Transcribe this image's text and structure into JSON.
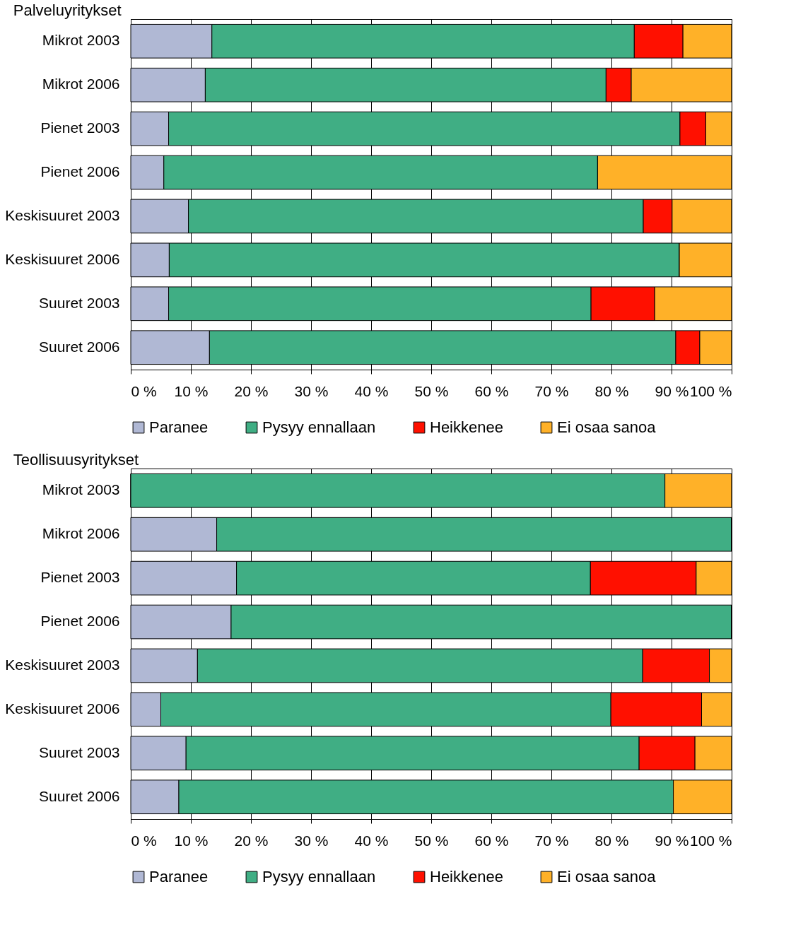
{
  "chart_data": [
    {
      "type": "bar",
      "orientation": "horizontal",
      "stacked": true,
      "title": "Palveluyritykset",
      "categories": [
        "Mikrot 2003",
        "Mikrot 2006",
        "Pienet 2003",
        "Pienet 2006",
        "Keskisuuret 2003",
        "Keskisuuret 2006",
        "Suuret 2003",
        "Suuret 2006"
      ],
      "series": [
        {
          "name": "Paranee",
          "color": "#b0b8d4",
          "values": [
            13.5,
            12.4,
            6.3,
            5.5,
            9.6,
            6.4,
            6.3,
            13.1
          ]
        },
        {
          "name": "Pysyy ennallaan",
          "color": "#40ae84",
          "values": [
            70.3,
            66.7,
            85.1,
            72.2,
            75.7,
            84.9,
            70.3,
            77.6
          ]
        },
        {
          "name": "Heikkenee",
          "color": "#ff1000",
          "values": [
            8.1,
            4.2,
            4.3,
            0,
            4.8,
            0,
            10.6,
            4.0
          ]
        },
        {
          "name": "Ei osaa sanoa",
          "color": "#ffb128",
          "values": [
            8.1,
            16.7,
            4.3,
            22.3,
            9.9,
            8.7,
            12.8,
            5.3
          ]
        }
      ],
      "xlim": [
        0,
        100
      ],
      "xticks": [
        {
          "value": 0,
          "label": "0 %"
        },
        {
          "value": 10,
          "label": "10 %"
        },
        {
          "value": 20,
          "label": "20 %"
        },
        {
          "value": 30,
          "label": "30 %"
        },
        {
          "value": 40,
          "label": "40 %"
        },
        {
          "value": 50,
          "label": "50 %"
        },
        {
          "value": 60,
          "label": "60 %"
        },
        {
          "value": 70,
          "label": "70 %"
        },
        {
          "value": 80,
          "label": "80 %"
        },
        {
          "value": 90,
          "label": "90 %"
        },
        {
          "value": 100,
          "label": "100 %"
        }
      ],
      "grid": "x",
      "legend": "bottom"
    },
    {
      "type": "bar",
      "orientation": "horizontal",
      "stacked": true,
      "title": "Teollisuusyritykset",
      "categories": [
        "Mikrot 2003",
        "Mikrot 2006",
        "Pienet 2003",
        "Pienet 2006",
        "Keskisuuret 2003",
        "Keskisuuret 2006",
        "Suuret 2003",
        "Suuret 2006"
      ],
      "series": [
        {
          "name": "Paranee",
          "color": "#b0b8d4",
          "values": [
            0,
            14.3,
            17.6,
            16.7,
            11.1,
            5.0,
            9.2,
            8.0
          ]
        },
        {
          "name": "Pysyy ennallaan",
          "color": "#40ae84",
          "values": [
            88.9,
            85.7,
            58.9,
            83.3,
            74.1,
            74.9,
            75.4,
            82.3
          ]
        },
        {
          "name": "Heikkenee",
          "color": "#ff1000",
          "values": [
            0,
            0,
            17.6,
            0,
            11.1,
            15.1,
            9.3,
            0
          ]
        },
        {
          "name": "Ei osaa sanoa",
          "color": "#ffb128",
          "values": [
            11.1,
            0,
            5.9,
            0,
            3.7,
            5.0,
            6.1,
            9.7
          ]
        }
      ],
      "xlim": [
        0,
        100
      ],
      "xticks": [
        {
          "value": 0,
          "label": "0 %"
        },
        {
          "value": 10,
          "label": "10 %"
        },
        {
          "value": 20,
          "label": "20 %"
        },
        {
          "value": 30,
          "label": "30 %"
        },
        {
          "value": 40,
          "label": "40 %"
        },
        {
          "value": 50,
          "label": "50 %"
        },
        {
          "value": 60,
          "label": "60 %"
        },
        {
          "value": 70,
          "label": "70 %"
        },
        {
          "value": 80,
          "label": "80 %"
        },
        {
          "value": 90,
          "label": "90 %"
        },
        {
          "value": 100,
          "label": "100 %"
        }
      ],
      "grid": "x",
      "legend": "bottom"
    }
  ]
}
